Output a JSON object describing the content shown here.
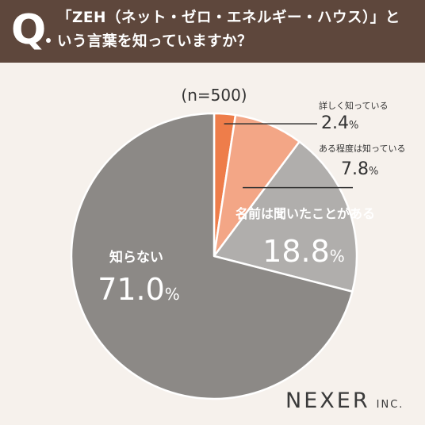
{
  "question": {
    "mark": "Q",
    "line1": "「ZEH（ネット・ゼロ・エネルギー・ハウス）」と",
    "line2": "いう言葉を知っていますか？"
  },
  "sample_size": "(n=500)",
  "brand": {
    "name": "NEXER",
    "suffix": "INC."
  },
  "chart_data": {
    "type": "pie",
    "title": "「ZEH（ネット・ゼロ・エネルギー・ハウス）」という言葉を知っていますか？",
    "start_angle": "12 o'clock",
    "direction": "clockwise",
    "slices": [
      {
        "label": "詳しく知っている",
        "value": 2.4,
        "display": "2.4",
        "unit": "%",
        "color": "#ee7d4a"
      },
      {
        "label": "ある程度は知っている",
        "value": 7.8,
        "display": "7.8",
        "unit": "%",
        "color": "#f3a686"
      },
      {
        "label": "名前は聞いたことがある",
        "value": 18.8,
        "display": "18.8",
        "unit": "%",
        "color": "#b0aeac"
      },
      {
        "label": "知らない",
        "value": 71.0,
        "display": "71.0",
        "unit": "%",
        "color": "#8c8986"
      }
    ]
  },
  "colors": {
    "header_bg": "#5e473c",
    "page_bg": "#f6f1ec",
    "slice_border": "#ffffff",
    "callout_text": "#333333",
    "inner_text": "#ffffff"
  }
}
